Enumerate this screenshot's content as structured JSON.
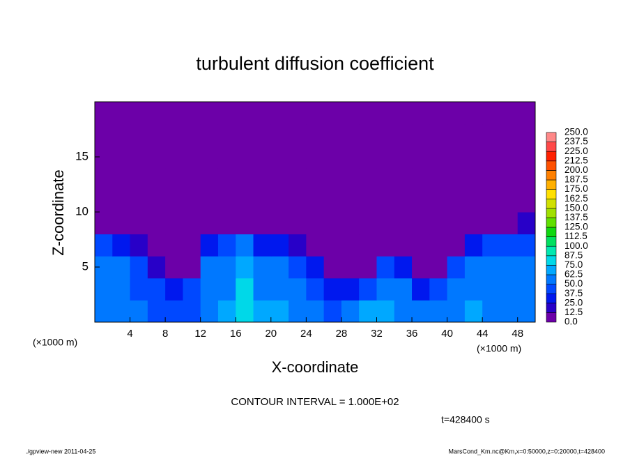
{
  "chart_data": {
    "type": "heatmap",
    "title": "turbulent diffusion coefficient",
    "xlabel": "X-coordinate",
    "ylabel": "Z-coordinate",
    "x_unit": "(×1000 m)",
    "x_unit_right": "(×1000 m)",
    "contour_interval": "CONTOUR INTERVAL = 1.000E+02",
    "time_label": "t=428400 s",
    "footer_left": "./gpview-new  2011-04-25",
    "footer_right": "MarsCond_Km.nc@Km,x=0:50000,z=0:20000,t=428400",
    "xlim": [
      0,
      50
    ],
    "xticks": [
      4,
      8,
      12,
      16,
      20,
      24,
      28,
      32,
      36,
      40,
      44,
      48
    ],
    "ylim": [
      0,
      20
    ],
    "yticks": [
      5,
      10,
      15
    ],
    "x": [
      1,
      3,
      5,
      7,
      9,
      11,
      13,
      15,
      17,
      19,
      21,
      23,
      25,
      27,
      29,
      31,
      33,
      35,
      37,
      39,
      41,
      43,
      45,
      47,
      49
    ],
    "y": [
      1,
      3,
      5,
      7,
      9,
      11,
      13,
      15,
      17,
      19
    ],
    "z": [
      [
        55,
        60,
        50,
        45,
        40,
        45,
        60,
        70,
        80,
        70,
        65,
        55,
        50,
        45,
        50,
        70,
        65,
        60,
        55,
        50,
        60,
        65,
        60,
        55,
        55
      ],
      [
        60,
        55,
        45,
        40,
        35,
        40,
        55,
        60,
        75,
        60,
        55,
        50,
        45,
        35,
        35,
        45,
        55,
        50,
        30,
        40,
        55,
        60,
        55,
        50,
        50
      ],
      [
        55,
        50,
        40,
        20,
        12,
        12,
        50,
        55,
        70,
        55,
        50,
        45,
        35,
        10,
        8,
        10,
        45,
        30,
        8,
        8,
        40,
        55,
        50,
        50,
        55
      ],
      [
        40,
        35,
        15,
        5,
        5,
        5,
        30,
        45,
        50,
        35,
        35,
        20,
        8,
        5,
        5,
        5,
        10,
        5,
        5,
        5,
        10,
        30,
        40,
        45,
        45
      ],
      [
        8,
        5,
        5,
        5,
        5,
        5,
        5,
        10,
        8,
        5,
        5,
        5,
        5,
        5,
        5,
        5,
        5,
        5,
        5,
        5,
        5,
        5,
        5,
        10,
        15
      ],
      [
        5,
        5,
        5,
        5,
        5,
        5,
        5,
        5,
        5,
        5,
        5,
        5,
        5,
        5,
        5,
        5,
        5,
        5,
        5,
        5,
        5,
        5,
        5,
        5,
        5
      ],
      [
        5,
        5,
        5,
        5,
        5,
        5,
        5,
        5,
        5,
        5,
        5,
        5,
        5,
        5,
        5,
        5,
        5,
        5,
        5,
        5,
        5,
        5,
        5,
        5,
        5
      ],
      [
        5,
        5,
        5,
        5,
        5,
        5,
        5,
        5,
        5,
        5,
        5,
        5,
        5,
        5,
        5,
        5,
        5,
        5,
        5,
        5,
        5,
        5,
        5,
        5,
        5
      ],
      [
        5,
        5,
        5,
        5,
        5,
        5,
        5,
        5,
        5,
        5,
        5,
        5,
        5,
        5,
        5,
        5,
        5,
        5,
        5,
        5,
        5,
        5,
        5,
        5,
        5
      ],
      [
        5,
        5,
        5,
        5,
        5,
        5,
        5,
        5,
        5,
        5,
        5,
        5,
        5,
        5,
        5,
        5,
        5,
        5,
        5,
        5,
        5,
        5,
        5,
        5,
        5
      ]
    ],
    "colorbar": {
      "levels": [
        {
          "value": 0,
          "label": "0.0"
        },
        12.5,
        {
          "value": 25,
          "label": "25.0"
        },
        37.5,
        {
          "value": 50,
          "label": "50.0"
        },
        62.5,
        {
          "value": 75,
          "label": "75.0"
        },
        87.5,
        {
          "value": 100,
          "label": "100.0"
        },
        112.5,
        {
          "value": 125,
          "label": "125.0"
        },
        137.5,
        {
          "value": 150,
          "label": "150.0"
        },
        162.5,
        {
          "value": 175,
          "label": "175.0"
        },
        187.5,
        {
          "value": 200,
          "label": "200.0"
        },
        212.5,
        {
          "value": 225,
          "label": "225.0"
        },
        237.5,
        {
          "value": 250,
          "label": "250.0"
        }
      ],
      "colors": [
        "#6c00a8",
        "#2800c8",
        "#0018ee",
        "#0048ff",
        "#0078ff",
        "#00a8ff",
        "#00d8e8",
        "#00e8b0",
        "#00e060",
        "#10d810",
        "#60e000",
        "#a0e000",
        "#d0e000",
        "#ffe000",
        "#ffb000",
        "#ff8000",
        "#ff5000",
        "#ff2000",
        "#ff4848",
        "#ff8888"
      ]
    }
  }
}
